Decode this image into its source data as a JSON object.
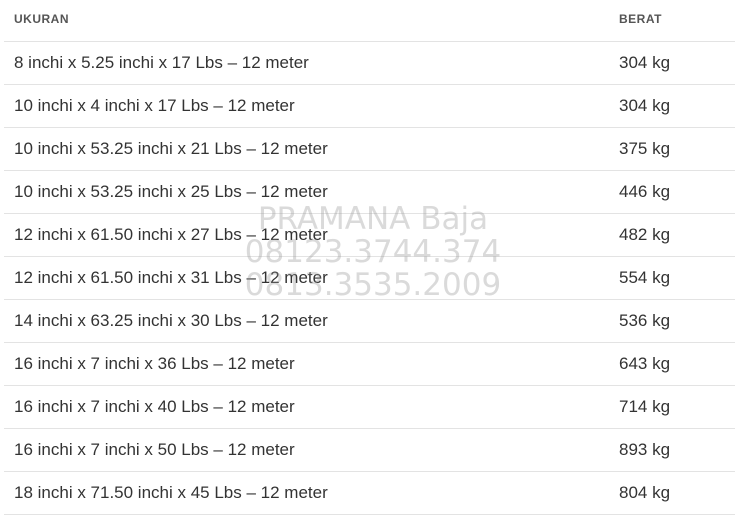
{
  "table": {
    "headers": {
      "size": "UKURAN",
      "weight": "BERAT"
    },
    "rows": [
      {
        "size": "8 inchi x 5.25 inchi x 17 Lbs – 12 meter",
        "weight": "304 kg"
      },
      {
        "size": "10 inchi x 4 inchi x 17 Lbs – 12 meter",
        "weight": "304 kg"
      },
      {
        "size": "10 inchi x 53.25 inchi x 21 Lbs – 12 meter",
        "weight": "375 kg"
      },
      {
        "size": "10 inchi x 53.25 inchi x 25 Lbs – 12 meter",
        "weight": "446 kg"
      },
      {
        "size": "12 inchi x 61.50 inchi x 27 Lbs – 12 meter",
        "weight": "482 kg"
      },
      {
        "size": "12 inchi x 61.50 inchi x 31 Lbs – 12 meter",
        "weight": "554 kg"
      },
      {
        "size": "14 inchi x 63.25 inchi x 30 Lbs – 12 meter",
        "weight": "536 kg"
      },
      {
        "size": "16 inchi x 7 inchi x 36 Lbs – 12 meter",
        "weight": "643 kg"
      },
      {
        "size": "16 inchi x 7 inchi x 40 Lbs – 12 meter",
        "weight": "714 kg"
      },
      {
        "size": "16 inchi x 7 inchi x 50 Lbs – 12 meter",
        "weight": "893 kg"
      },
      {
        "size": "18 inchi x 71.50 inchi x 45 Lbs – 12 meter",
        "weight": "804 kg"
      }
    ]
  },
  "watermark": {
    "line1": "PRAMANA Baja",
    "line2": "08123.3744.374",
    "line3": "0813.3535.2009"
  }
}
